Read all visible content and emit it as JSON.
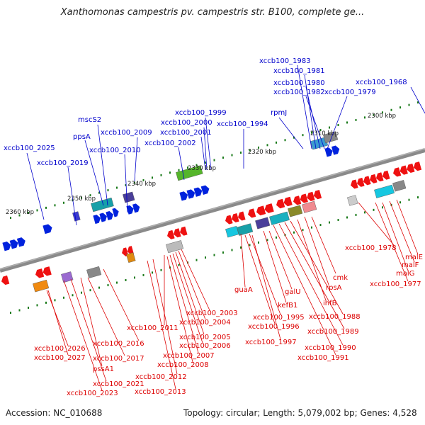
{
  "title": "Xanthomonas campestris pv. campestris str. B100, complete ge...",
  "accession": "Accession: NC_010688",
  "summary": "Topology: circular; Length: 5,079,002 bp; Genes: 4,528",
  "colors": {
    "forward_label": "#0000cc",
    "reverse_label": "#dd0000",
    "backbone": "#888888",
    "tick": "#1a7a1a"
  },
  "kbp_labels": [
    "2300 kbp",
    "2310 kbp",
    "2320 kbp",
    "2330 kbp",
    "2340 kbp",
    "2350 kbp",
    "2360 kbp"
  ],
  "forward_genes": [
    "xccb100_1983",
    "xccb100_1981",
    "xccb100_1980",
    "xccb100_1982",
    "xccb100_1979",
    "xccb100_1968",
    "rpmJ",
    "mscS2",
    "xccb100_1999",
    "xccb100_2000",
    "xccb100_2001",
    "xccb100_1994",
    "ppsA",
    "xccb100_2009",
    "xccb100_2002",
    "xccb100_2010",
    "xccb100_2025",
    "xccb100_2019"
  ],
  "reverse_genes": [
    "xccb100_1978",
    "malE",
    "malF",
    "malG",
    "xccb100_1977",
    "cmk",
    "rpsA",
    "ihfB",
    "xccb100_1988",
    "xccb100_1989",
    "xccb100_1990",
    "xccb100_1991",
    "guaA",
    "kefB1",
    "galU",
    "xccb100_1995",
    "xccb100_1996",
    "xccb100_1997",
    "xccb100_2003",
    "xccb100_2004",
    "xccb100_2011",
    "xccb100_2005",
    "xccb100_2006",
    "xccb100_2007",
    "xccb100_2008",
    "xccb100_2012",
    "xccb100_2013",
    "xccb100_2016",
    "xccb100_2026",
    "xccb100_2027",
    "xccb100_2017",
    "pssA1",
    "xccb100_2021",
    "xccb100_2023"
  ]
}
